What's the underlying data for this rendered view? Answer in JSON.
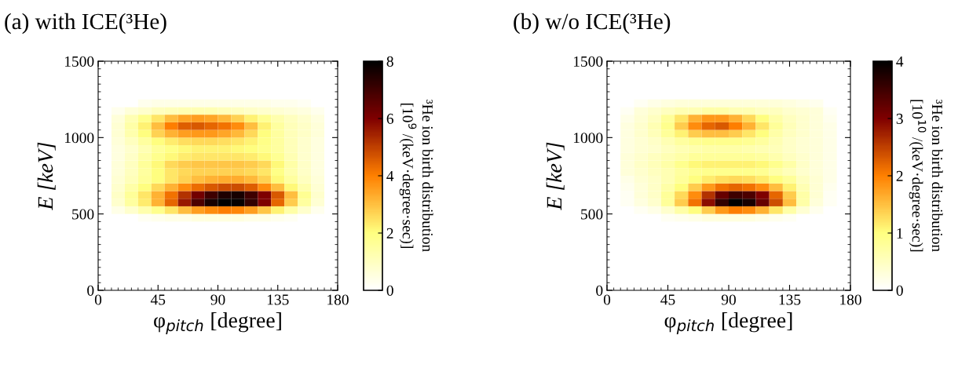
{
  "chart_data": [
    {
      "type": "heatmap",
      "title": "(a) with ICE(³He)",
      "xlabel": "φ$_{pitch}$ [degree]",
      "ylabel": "E [keV]",
      "clabel": "³He ion birth distribution\n[10$^{9}$ /(keV·degree·sec)]",
      "x": [
        5,
        15,
        25,
        35,
        45,
        55,
        65,
        75,
        85,
        95,
        105,
        115,
        125,
        135,
        145,
        155,
        165,
        175
      ],
      "y": [
        1225,
        1175,
        1125,
        1075,
        1025,
        975,
        925,
        875,
        825,
        775,
        725,
        675,
        625,
        575,
        525,
        475
      ],
      "cells": [
        [
          0,
          0,
          0,
          0.3,
          0.4,
          0.4,
          0.4,
          0.4,
          0.4,
          0.4,
          0.4,
          0.4,
          0.4,
          0.3,
          0.3,
          0.2,
          0,
          0
        ],
        [
          0,
          0.3,
          0.6,
          0.8,
          1.0,
          1.1,
          1.2,
          1.2,
          1.2,
          1.1,
          1.0,
          0.9,
          0.8,
          0.7,
          0.6,
          0.5,
          0.3,
          0
        ],
        [
          0,
          0.6,
          1.2,
          1.8,
          2.4,
          3.0,
          3.4,
          3.5,
          3.4,
          3.1,
          2.7,
          2.2,
          1.7,
          1.3,
          1.0,
          0.8,
          0.5,
          0
        ],
        [
          0,
          0.7,
          1.4,
          2.2,
          3.0,
          4.0,
          4.5,
          4.6,
          4.4,
          4.2,
          3.8,
          3.0,
          2.2,
          1.5,
          1.1,
          0.9,
          0.6,
          0
        ],
        [
          0,
          0.7,
          1.3,
          2.0,
          2.7,
          3.2,
          3.5,
          3.6,
          3.6,
          3.4,
          3.1,
          2.6,
          2.0,
          1.5,
          1.1,
          0.9,
          0.6,
          0
        ],
        [
          0,
          0.6,
          1.0,
          1.5,
          2.0,
          2.3,
          2.5,
          2.6,
          2.6,
          2.5,
          2.4,
          2.2,
          1.9,
          1.5,
          1.1,
          0.8,
          0.5,
          0
        ],
        [
          0,
          0.5,
          0.8,
          1.2,
          1.6,
          1.9,
          2.1,
          2.2,
          2.2,
          2.2,
          2.1,
          2.0,
          1.8,
          1.5,
          1.1,
          0.8,
          0.5,
          0
        ],
        [
          0,
          0.5,
          0.9,
          1.4,
          1.8,
          2.1,
          2.3,
          2.4,
          2.4,
          2.4,
          2.4,
          2.3,
          2.1,
          1.7,
          1.2,
          0.8,
          0.5,
          0
        ],
        [
          0,
          0.6,
          1.0,
          1.6,
          2.1,
          2.6,
          2.8,
          2.9,
          2.9,
          2.9,
          2.9,
          2.8,
          2.6,
          2.1,
          1.4,
          0.9,
          0.5,
          0
        ],
        [
          0,
          0.6,
          1.0,
          1.5,
          2.0,
          2.4,
          2.6,
          2.7,
          2.7,
          2.7,
          2.7,
          2.6,
          2.4,
          1.9,
          1.3,
          0.9,
          0.5,
          0
        ],
        [
          0,
          0.7,
          1.1,
          1.6,
          2.0,
          2.4,
          2.7,
          3.0,
          3.2,
          3.3,
          3.3,
          3.1,
          2.7,
          2.1,
          1.5,
          1.0,
          0.6,
          0
        ],
        [
          0,
          0.8,
          1.4,
          2.0,
          2.6,
          3.2,
          3.8,
          4.3,
          4.6,
          4.8,
          4.8,
          4.5,
          3.8,
          3.0,
          2.1,
          1.3,
          0.7,
          0
        ],
        [
          0,
          0.9,
          1.6,
          2.4,
          3.2,
          4.2,
          5.2,
          6.2,
          7.0,
          7.5,
          7.6,
          7.0,
          6.0,
          4.6,
          3.0,
          1.7,
          0.8,
          0
        ],
        [
          0,
          0.8,
          1.5,
          2.3,
          3.2,
          4.4,
          5.6,
          6.8,
          7.6,
          8.0,
          7.9,
          7.2,
          6.0,
          4.4,
          2.8,
          1.5,
          0.7,
          0
        ],
        [
          0,
          0.4,
          0.8,
          1.3,
          1.8,
          2.4,
          3.0,
          3.5,
          3.8,
          4.0,
          3.9,
          3.5,
          2.9,
          2.2,
          1.4,
          0.8,
          0.3,
          0
        ],
        [
          0,
          0,
          0,
          0.2,
          0.3,
          0.4,
          0.4,
          0.5,
          0.5,
          0.5,
          0.5,
          0.4,
          0.4,
          0.3,
          0.2,
          0,
          0,
          0
        ]
      ],
      "xlim": [
        0,
        180
      ],
      "xticks": [
        0,
        45,
        90,
        135,
        180
      ],
      "ylim": [
        0,
        1500
      ],
      "yticks": [
        0,
        500,
        1000,
        1500
      ],
      "clim": [
        0,
        8
      ],
      "cticks": [
        0,
        2,
        4,
        6,
        8
      ],
      "grid": false
    },
    {
      "type": "heatmap",
      "title": "(b) w/o ICE(³He)",
      "xlabel": "φ$_{pitch}$ [degree]",
      "ylabel": "E [keV]",
      "clabel": "³He ion birth distribution\n[10$^{10}$ /(keV·degree·sec)]",
      "x": [
        5,
        15,
        25,
        35,
        45,
        55,
        65,
        75,
        85,
        95,
        105,
        115,
        125,
        135,
        145,
        155,
        165,
        175
      ],
      "y": [
        1225,
        1175,
        1125,
        1075,
        1025,
        975,
        925,
        875,
        825,
        775,
        725,
        675,
        625,
        575,
        525,
        475
      ],
      "cells": [
        [
          0,
          0,
          0.1,
          0.2,
          0.25,
          0.3,
          0.3,
          0.3,
          0.3,
          0.3,
          0.3,
          0.3,
          0.3,
          0.25,
          0.2,
          0.15,
          0,
          0
        ],
        [
          0,
          0.1,
          0.3,
          0.4,
          0.5,
          0.6,
          0.6,
          0.7,
          0.7,
          0.6,
          0.6,
          0.5,
          0.5,
          0.4,
          0.35,
          0.3,
          0.1,
          0
        ],
        [
          0,
          0.2,
          0.35,
          0.5,
          0.8,
          1.2,
          1.6,
          1.8,
          1.8,
          1.6,
          1.3,
          1.0,
          0.7,
          0.5,
          0.4,
          0.3,
          0.15,
          0
        ],
        [
          0,
          0.25,
          0.4,
          0.6,
          0.9,
          1.4,
          1.9,
          2.2,
          2.3,
          2.0,
          1.6,
          1.2,
          0.8,
          0.55,
          0.4,
          0.3,
          0.2,
          0
        ],
        [
          0,
          0.25,
          0.4,
          0.55,
          0.8,
          1.1,
          1.4,
          1.5,
          1.5,
          1.4,
          1.2,
          1.0,
          0.7,
          0.5,
          0.4,
          0.3,
          0.2,
          0
        ],
        [
          0,
          0.25,
          0.35,
          0.45,
          0.6,
          0.75,
          0.85,
          0.9,
          0.9,
          0.9,
          0.85,
          0.75,
          0.6,
          0.45,
          0.35,
          0.3,
          0.2,
          0
        ],
        [
          0,
          0.25,
          0.35,
          0.4,
          0.5,
          0.6,
          0.65,
          0.7,
          0.7,
          0.7,
          0.65,
          0.6,
          0.55,
          0.45,
          0.35,
          0.3,
          0.2,
          0
        ],
        [
          0,
          0.3,
          0.4,
          0.5,
          0.6,
          0.7,
          0.8,
          0.8,
          0.8,
          0.8,
          0.8,
          0.75,
          0.65,
          0.5,
          0.4,
          0.3,
          0.2,
          0
        ],
        [
          0,
          0.3,
          0.45,
          0.55,
          0.7,
          0.9,
          1.05,
          1.1,
          1.1,
          1.1,
          1.1,
          1.05,
          0.9,
          0.7,
          0.45,
          0.3,
          0.2,
          0
        ],
        [
          0,
          0.3,
          0.4,
          0.5,
          0.6,
          0.75,
          0.85,
          0.9,
          0.9,
          0.9,
          0.9,
          0.85,
          0.7,
          0.55,
          0.4,
          0.3,
          0.2,
          0
        ],
        [
          0,
          0.2,
          0.35,
          0.45,
          0.6,
          0.8,
          1.0,
          1.15,
          1.25,
          1.3,
          1.25,
          1.15,
          1.0,
          0.8,
          0.5,
          0.35,
          0.2,
          0
        ],
        [
          0,
          0.15,
          0.3,
          0.45,
          0.7,
          1.0,
          1.4,
          1.8,
          2.1,
          2.2,
          2.1,
          1.9,
          1.5,
          1.1,
          0.6,
          0.35,
          0.15,
          0
        ],
        [
          0,
          0.1,
          0.3,
          0.45,
          0.8,
          1.3,
          1.9,
          2.6,
          3.2,
          3.5,
          3.4,
          3.0,
          2.2,
          1.4,
          0.7,
          0.35,
          0.1,
          0
        ],
        [
          0,
          0.1,
          0.25,
          0.4,
          0.8,
          1.4,
          2.1,
          2.9,
          3.6,
          4.0,
          3.8,
          3.2,
          2.4,
          1.5,
          0.7,
          0.3,
          0.1,
          0
        ],
        [
          0,
          0,
          0.1,
          0.2,
          0.4,
          0.7,
          1.0,
          1.4,
          1.8,
          2.0,
          1.9,
          1.6,
          1.2,
          0.7,
          0.35,
          0.15,
          0,
          0
        ],
        [
          0,
          0,
          0,
          0,
          0.1,
          0.15,
          0.2,
          0.25,
          0.25,
          0.25,
          0.25,
          0.2,
          0.15,
          0.1,
          0,
          0,
          0,
          0
        ]
      ],
      "xlim": [
        0,
        180
      ],
      "xticks": [
        0,
        45,
        90,
        135,
        180
      ],
      "ylim": [
        0,
        1500
      ],
      "yticks": [
        0,
        500,
        1000,
        1500
      ],
      "clim": [
        0,
        4
      ],
      "cticks": [
        0,
        1,
        2,
        3,
        4
      ],
      "grid": false
    }
  ]
}
